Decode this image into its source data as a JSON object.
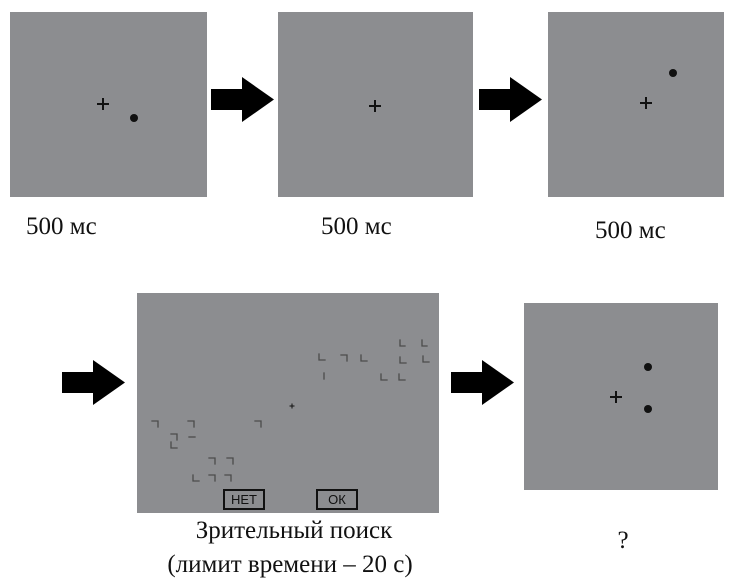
{
  "trial_sequence": {
    "stage_1": {
      "caption": "500 мс"
    },
    "stage_2": {
      "caption": "500 мс"
    },
    "stage_3": {
      "caption": "500 мс"
    },
    "search_stage": {
      "caption_line_1": "Зрительный поиск",
      "caption_line_2": "(лимит времени – 20 с)",
      "buttons": {
        "no_label": "НЕТ",
        "ok_label": "ОК"
      }
    },
    "response_stage": {
      "caption": "?"
    }
  },
  "colors": {
    "panel_background": "#8c8d90",
    "fixation_and_dots": "#111111",
    "arrow": "#000000",
    "search_stimuli": "#4b4b4b"
  },
  "icons": {
    "fixation": "fixation-cross-icon",
    "target": "dot-icon",
    "arrow": "right-arrow-icon",
    "search_item": "corner-stimulus-icon"
  }
}
